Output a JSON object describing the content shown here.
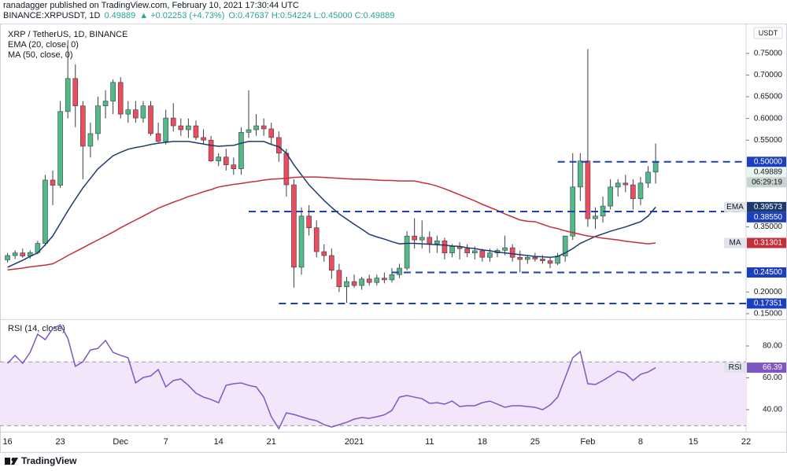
{
  "header": {
    "published": "ranadagger published on TradingView.com, February 10, 2021 17:30:44 UTC",
    "symbol": "BINANCE:XRPUSDT, 1D",
    "price": "0.49889",
    "change": "▲ +0.02253 (+4.73%)",
    "ohlc": "O:0.47637 H:0.54224 L:0.45000 C:0.49889"
  },
  "footer": {
    "brand": "TradingView"
  },
  "chart_data": [
    {
      "type": "candlestick",
      "title": "XRP / TetherUS, 1D, BINANCE",
      "currency": "USDT",
      "x": [
        "2020-11-16",
        "2020-11-17",
        "2020-11-18",
        "2020-11-19",
        "2020-11-20",
        "2020-11-21",
        "2020-11-22",
        "2020-11-23",
        "2020-11-24",
        "2020-11-25",
        "2020-11-26",
        "2020-11-27",
        "2020-11-28",
        "2020-11-29",
        "2020-11-30",
        "2020-12-01",
        "2020-12-02",
        "2020-12-03",
        "2020-12-04",
        "2020-12-05",
        "2020-12-06",
        "2020-12-07",
        "2020-12-08",
        "2020-12-09",
        "2020-12-10",
        "2020-12-11",
        "2020-12-12",
        "2020-12-13",
        "2020-12-14",
        "2020-12-15",
        "2020-12-16",
        "2020-12-17",
        "2020-12-18",
        "2020-12-19",
        "2020-12-20",
        "2020-12-21",
        "2020-12-22",
        "2020-12-23",
        "2020-12-24",
        "2020-12-25",
        "2020-12-26",
        "2020-12-27",
        "2020-12-28",
        "2020-12-29",
        "2020-12-30",
        "2020-12-31",
        "2021-01-01",
        "2021-01-02",
        "2021-01-03",
        "2021-01-04",
        "2021-01-05",
        "2021-01-06",
        "2021-01-07",
        "2021-01-08",
        "2021-01-09",
        "2021-01-10",
        "2021-01-11",
        "2021-01-12",
        "2021-01-13",
        "2021-01-14",
        "2021-01-15",
        "2021-01-16",
        "2021-01-17",
        "2021-01-18",
        "2021-01-19",
        "2021-01-20",
        "2021-01-21",
        "2021-01-22",
        "2021-01-23",
        "2021-01-24",
        "2021-01-25",
        "2021-01-26",
        "2021-01-27",
        "2021-01-28",
        "2021-01-29",
        "2021-01-30",
        "2021-01-31",
        "2021-02-01",
        "2021-02-02",
        "2021-02-03",
        "2021-02-04",
        "2021-02-05",
        "2021-02-06",
        "2021-02-07",
        "2021-02-08",
        "2021-02-09",
        "2021-02-10"
      ],
      "open": [
        0.274,
        0.284,
        0.29,
        0.283,
        0.291,
        0.312,
        0.458,
        0.446,
        0.616,
        0.692,
        0.629,
        0.536,
        0.565,
        0.629,
        0.64,
        0.683,
        0.61,
        0.62,
        0.601,
        0.629,
        0.565,
        0.547,
        0.601,
        0.583,
        0.574,
        0.583,
        0.556,
        0.55,
        0.502,
        0.511,
        0.493,
        0.484,
        0.568,
        0.574,
        0.583,
        0.576,
        0.556,
        0.52,
        0.447,
        0.257,
        0.375,
        0.348,
        0.293,
        0.284,
        0.25,
        0.212,
        0.224,
        0.215,
        0.23,
        0.222,
        0.232,
        0.228,
        0.24,
        0.255,
        0.329,
        0.32,
        0.326,
        0.311,
        0.318,
        0.29,
        0.305,
        0.3,
        0.29,
        0.295,
        0.28,
        0.29,
        0.296,
        0.302,
        0.28,
        0.275,
        0.28,
        0.276,
        0.272,
        0.266,
        0.283,
        0.329,
        0.442,
        0.502,
        0.369,
        0.375,
        0.398,
        0.442,
        0.451,
        0.447,
        0.415,
        0.451,
        0.47637
      ],
      "high": [
        0.29,
        0.296,
        0.3,
        0.296,
        0.318,
        0.47,
        0.48,
        0.64,
        0.78,
        0.725,
        0.64,
        0.59,
        0.65,
        0.665,
        0.69,
        0.695,
        0.64,
        0.64,
        0.64,
        0.64,
        0.59,
        0.62,
        0.635,
        0.6,
        0.6,
        0.595,
        0.575,
        0.56,
        0.52,
        0.53,
        0.51,
        0.58,
        0.665,
        0.61,
        0.6,
        0.59,
        0.57,
        0.53,
        0.46,
        0.395,
        0.4,
        0.365,
        0.31,
        0.3,
        0.265,
        0.235,
        0.24,
        0.235,
        0.24,
        0.24,
        0.245,
        0.255,
        0.265,
        0.34,
        0.37,
        0.365,
        0.34,
        0.33,
        0.325,
        0.31,
        0.315,
        0.31,
        0.305,
        0.3,
        0.3,
        0.3,
        0.33,
        0.31,
        0.295,
        0.285,
        0.29,
        0.285,
        0.28,
        0.29,
        0.33,
        0.52,
        0.52,
        0.76,
        0.395,
        0.42,
        0.46,
        0.46,
        0.47,
        0.46,
        0.465,
        0.49,
        0.54224
      ],
      "low": [
        0.268,
        0.276,
        0.279,
        0.277,
        0.287,
        0.306,
        0.4,
        0.44,
        0.6,
        0.58,
        0.46,
        0.51,
        0.55,
        0.6,
        0.61,
        0.6,
        0.59,
        0.59,
        0.59,
        0.56,
        0.545,
        0.54,
        0.57,
        0.56,
        0.555,
        0.55,
        0.54,
        0.5,
        0.49,
        0.48,
        0.47,
        0.47,
        0.555,
        0.56,
        0.56,
        0.54,
        0.5,
        0.42,
        0.21,
        0.24,
        0.33,
        0.28,
        0.27,
        0.23,
        0.2,
        0.175,
        0.21,
        0.205,
        0.215,
        0.215,
        0.22,
        0.222,
        0.232,
        0.25,
        0.3,
        0.3,
        0.29,
        0.29,
        0.275,
        0.28,
        0.275,
        0.28,
        0.275,
        0.27,
        0.27,
        0.28,
        0.285,
        0.27,
        0.245,
        0.265,
        0.27,
        0.265,
        0.255,
        0.262,
        0.27,
        0.32,
        0.41,
        0.35,
        0.345,
        0.36,
        0.39,
        0.42,
        0.43,
        0.39,
        0.4,
        0.44,
        0.45
      ],
      "close": [
        0.284,
        0.29,
        0.283,
        0.291,
        0.312,
        0.458,
        0.446,
        0.616,
        0.692,
        0.629,
        0.536,
        0.565,
        0.629,
        0.64,
        0.683,
        0.61,
        0.62,
        0.601,
        0.629,
        0.565,
        0.547,
        0.601,
        0.583,
        0.574,
        0.583,
        0.556,
        0.55,
        0.502,
        0.511,
        0.493,
        0.484,
        0.568,
        0.574,
        0.583,
        0.576,
        0.556,
        0.52,
        0.447,
        0.257,
        0.375,
        0.348,
        0.293,
        0.284,
        0.25,
        0.212,
        0.224,
        0.215,
        0.23,
        0.222,
        0.232,
        0.228,
        0.24,
        0.255,
        0.329,
        0.32,
        0.326,
        0.311,
        0.318,
        0.29,
        0.305,
        0.3,
        0.29,
        0.295,
        0.28,
        0.29,
        0.296,
        0.302,
        0.28,
        0.275,
        0.28,
        0.276,
        0.272,
        0.266,
        0.283,
        0.329,
        0.442,
        0.502,
        0.369,
        0.375,
        0.398,
        0.442,
        0.451,
        0.447,
        0.415,
        0.451,
        0.47637,
        0.49889
      ],
      "up_color": "#53b987",
      "down_color": "#eb4d5c",
      "series": [
        {
          "name": "EMA (20, close, 0)",
          "short": "EMA",
          "color": "#1d3a6e",
          "values": [
            0.257,
            0.265,
            0.273,
            0.282,
            0.29,
            0.309,
            0.329,
            0.358,
            0.387,
            0.414,
            0.44,
            0.462,
            0.484,
            0.499,
            0.514,
            0.522,
            0.529,
            0.533,
            0.536,
            0.54,
            0.543,
            0.545,
            0.547,
            0.547,
            0.547,
            0.544,
            0.541,
            0.538,
            0.536,
            0.537,
            0.538,
            0.543,
            0.547,
            0.547,
            0.547,
            0.54,
            0.535,
            0.52,
            0.493,
            0.47,
            0.447,
            0.429,
            0.411,
            0.395,
            0.38,
            0.368,
            0.356,
            0.345,
            0.333,
            0.327,
            0.322,
            0.316,
            0.311,
            0.312,
            0.312,
            0.311,
            0.31,
            0.309,
            0.308,
            0.306,
            0.305,
            0.302,
            0.3,
            0.297,
            0.295,
            0.292,
            0.29,
            0.288,
            0.286,
            0.284,
            0.282,
            0.281,
            0.28,
            0.282,
            0.29,
            0.3,
            0.312,
            0.32,
            0.328,
            0.334,
            0.34,
            0.345,
            0.35,
            0.356,
            0.362,
            0.375,
            0.39573
          ]
        },
        {
          "name": "MA (50, close, 0)",
          "short": "MA",
          "color": "#c4303a",
          "values": [
            0.251,
            0.253,
            0.255,
            0.258,
            0.26,
            0.262,
            0.265,
            0.274,
            0.284,
            0.293,
            0.302,
            0.311,
            0.32,
            0.329,
            0.338,
            0.348,
            0.357,
            0.366,
            0.375,
            0.384,
            0.393,
            0.4,
            0.407,
            0.413,
            0.42,
            0.425,
            0.431,
            0.436,
            0.442,
            0.445,
            0.448,
            0.45,
            0.453,
            0.455,
            0.458,
            0.46,
            0.461,
            0.462,
            0.464,
            0.465,
            0.465,
            0.465,
            0.464,
            0.463,
            0.462,
            0.461,
            0.46,
            0.46,
            0.459,
            0.458,
            0.457,
            0.457,
            0.456,
            0.456,
            0.456,
            0.452,
            0.449,
            0.444,
            0.438,
            0.431,
            0.424,
            0.417,
            0.41,
            0.402,
            0.395,
            0.388,
            0.38,
            0.373,
            0.366,
            0.363,
            0.362,
            0.356,
            0.35,
            0.346,
            0.341,
            0.337,
            0.333,
            0.329,
            0.327,
            0.324,
            0.322,
            0.32,
            0.317,
            0.315,
            0.313,
            0.311,
            0.31301
          ]
        }
      ],
      "levels": {
        "color": "#1c3fbf",
        "values": [
          0.5,
          0.3855,
          0.245,
          0.17351
        ],
        "value_labels": [
          "0.50000",
          "0.38550",
          "0.24500",
          "0.17351"
        ],
        "start": [
          "2021-01-28",
          "2020-12-18",
          "2021-01-06",
          "2020-12-22"
        ]
      },
      "countdown": "06:29:19",
      "xlim": [
        "2020-11-15",
        "2021-02-22"
      ],
      "ylim": [
        0.139,
        0.815
      ],
      "yticks": [
        {
          "value": 0.15,
          "label": "0.15000"
        },
        {
          "value": 0.2,
          "label": "0.20000"
        },
        {
          "value": 0.35,
          "label": "0.35000"
        },
        {
          "value": 0.55,
          "label": "0.55000"
        },
        {
          "value": 0.6,
          "label": "0.60000"
        },
        {
          "value": 0.65,
          "label": "0.65000"
        },
        {
          "value": 0.7,
          "label": "0.70000"
        },
        {
          "value": 0.75,
          "label": "0.75000"
        }
      ]
    },
    {
      "type": "line",
      "x": [
        "2020-11-16",
        "2020-11-17",
        "2020-11-18",
        "2020-11-19",
        "2020-11-20",
        "2020-11-21",
        "2020-11-22",
        "2020-11-23",
        "2020-11-24",
        "2020-11-25",
        "2020-11-26",
        "2020-11-27",
        "2020-11-28",
        "2020-11-29",
        "2020-11-30",
        "2020-12-01",
        "2020-12-02",
        "2020-12-03",
        "2020-12-04",
        "2020-12-05",
        "2020-12-06",
        "2020-12-07",
        "2020-12-08",
        "2020-12-09",
        "2020-12-10",
        "2020-12-11",
        "2020-12-12",
        "2020-12-13",
        "2020-12-14",
        "2020-12-15",
        "2020-12-16",
        "2020-12-17",
        "2020-12-18",
        "2020-12-19",
        "2020-12-20",
        "2020-12-21",
        "2020-12-22",
        "2020-12-23",
        "2020-12-24",
        "2020-12-25",
        "2020-12-26",
        "2020-12-27",
        "2020-12-28",
        "2020-12-29",
        "2020-12-30",
        "2020-12-31",
        "2021-01-01",
        "2021-01-02",
        "2021-01-03",
        "2021-01-04",
        "2021-01-05",
        "2021-01-06",
        "2021-01-07",
        "2021-01-08",
        "2021-01-09",
        "2021-01-10",
        "2021-01-11",
        "2021-01-12",
        "2021-01-13",
        "2021-01-14",
        "2021-01-15",
        "2021-01-16",
        "2021-01-17",
        "2021-01-18",
        "2021-01-19",
        "2021-01-20",
        "2021-01-21",
        "2021-01-22",
        "2021-01-23",
        "2021-01-24",
        "2021-01-25",
        "2021-01-26",
        "2021-01-27",
        "2021-01-28",
        "2021-01-29",
        "2021-01-30",
        "2021-01-31",
        "2021-02-01",
        "2021-02-02",
        "2021-02-03",
        "2021-02-04",
        "2021-02-05",
        "2021-02-06",
        "2021-02-07",
        "2021-02-08",
        "2021-02-09",
        "2021-02-10"
      ],
      "series": [
        {
          "name": "RSI (14, close)",
          "short": "RSI",
          "color": "#7e57c2",
          "values": [
            69.1,
            74.1,
            69.1,
            76.0,
            87.4,
            84.0,
            90.9,
            93.3,
            84.9,
            67.2,
            70.1,
            77.5,
            78.5,
            83.5,
            76.0,
            74.1,
            72.6,
            56.8,
            60.2,
            61.2,
            65.2,
            54.3,
            58.3,
            59.3,
            55.3,
            50.4,
            47.9,
            46.4,
            44.4,
            55.3,
            56.3,
            56.8,
            55.3,
            54.3,
            47.9,
            35.6,
            28.1,
            38.0,
            37.0,
            35.6,
            34.1,
            33.1,
            30.6,
            29.1,
            30.6,
            32.1,
            34.1,
            35.1,
            34.6,
            35.6,
            36.8,
            39.5,
            47.9,
            48.9,
            47.9,
            46.9,
            44.0,
            44.4,
            43.5,
            45.4,
            42.0,
            42.5,
            42.5,
            44.4,
            45.4,
            43.5,
            41.5,
            42.5,
            42.5,
            42.0,
            41.5,
            40.0,
            43.0,
            47.9,
            60.2,
            72.6,
            76.5,
            56.3,
            55.8,
            58.3,
            61.2,
            64.2,
            62.7,
            58.3,
            62.2,
            63.7,
            66.39
          ]
        }
      ],
      "band": [
        30,
        70
      ],
      "band_color": "#f3e6fb",
      "xlim": [
        "2020-11-15",
        "2021-02-22"
      ],
      "ylim": [
        26.7,
        95.8
      ],
      "yticks": [
        {
          "value": 40,
          "label": "40.00"
        },
        {
          "value": 60,
          "label": "60.00"
        },
        {
          "value": 80,
          "label": "80.00"
        }
      ],
      "xticks": [
        {
          "value": "2020-11-16",
          "label": "16"
        },
        {
          "value": "2020-11-23",
          "label": "23"
        },
        {
          "value": "2020-12-01",
          "label": "Dec"
        },
        {
          "value": "2020-12-07",
          "label": "7"
        },
        {
          "value": "2020-12-14",
          "label": "14"
        },
        {
          "value": "2020-12-21",
          "label": "21"
        },
        {
          "value": "2021-01-01",
          "label": "2021"
        },
        {
          "value": "2021-01-11",
          "label": "11"
        },
        {
          "value": "2021-01-18",
          "label": "18"
        },
        {
          "value": "2021-01-25",
          "label": "25"
        },
        {
          "value": "2021-02-01",
          "label": "Feb"
        },
        {
          "value": "2021-02-08",
          "label": "8"
        },
        {
          "value": "2021-02-15",
          "label": "15"
        },
        {
          "value": "2021-02-22",
          "label": "22"
        }
      ]
    }
  ]
}
